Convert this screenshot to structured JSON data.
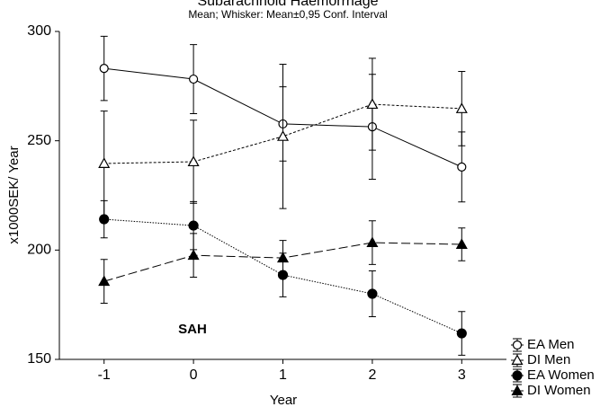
{
  "chart_data": {
    "type": "line",
    "title": "Subarachnoid Haemorrhage",
    "subtitle": "Mean; Whisker: Mean±0,95 Conf. Interval",
    "x_label": "Year",
    "y_label": "x1000SEK/ Year",
    "annotation": "SAH",
    "x": [
      -1,
      0,
      1,
      2,
      3
    ],
    "xlim": [
      -1.5,
      3.5
    ],
    "xticks": [
      -1,
      0,
      1,
      2,
      3
    ],
    "ylim": [
      150,
      300
    ],
    "yticks": [
      150,
      200,
      250,
      300
    ],
    "legend": "bottom-right",
    "series": [
      {
        "name": "EA Men",
        "color": "#000000",
        "marker": "open-circle",
        "dash": "solid",
        "values": [
          283.1,
          278.2,
          257.7,
          256.4,
          238
        ],
        "errors": [
          14.7,
          15.8,
          17,
          24,
          16
        ]
      },
      {
        "name": "DI Men",
        "color": "#000000",
        "marker": "open-triangle",
        "dash": "dotted",
        "values": [
          239.6,
          240.4,
          252,
          266.7,
          264.7
        ],
        "errors": [
          24,
          19,
          33,
          21,
          17
        ]
      },
      {
        "name": "EA Women",
        "color": "#000000",
        "marker": "filled-circle",
        "dash": "fine-dotted",
        "values": [
          214.1,
          211.2,
          188.6,
          180,
          161.9
        ],
        "errors": [
          8.5,
          11,
          10,
          10.5,
          10
        ]
      },
      {
        "name": "DI Women",
        "color": "#000000",
        "marker": "filled-triangle",
        "dash": "dashed",
        "values": [
          185.7,
          197.6,
          196.4,
          203.4,
          202.6
        ],
        "errors": [
          10,
          10,
          8,
          10,
          7.5
        ]
      }
    ]
  }
}
